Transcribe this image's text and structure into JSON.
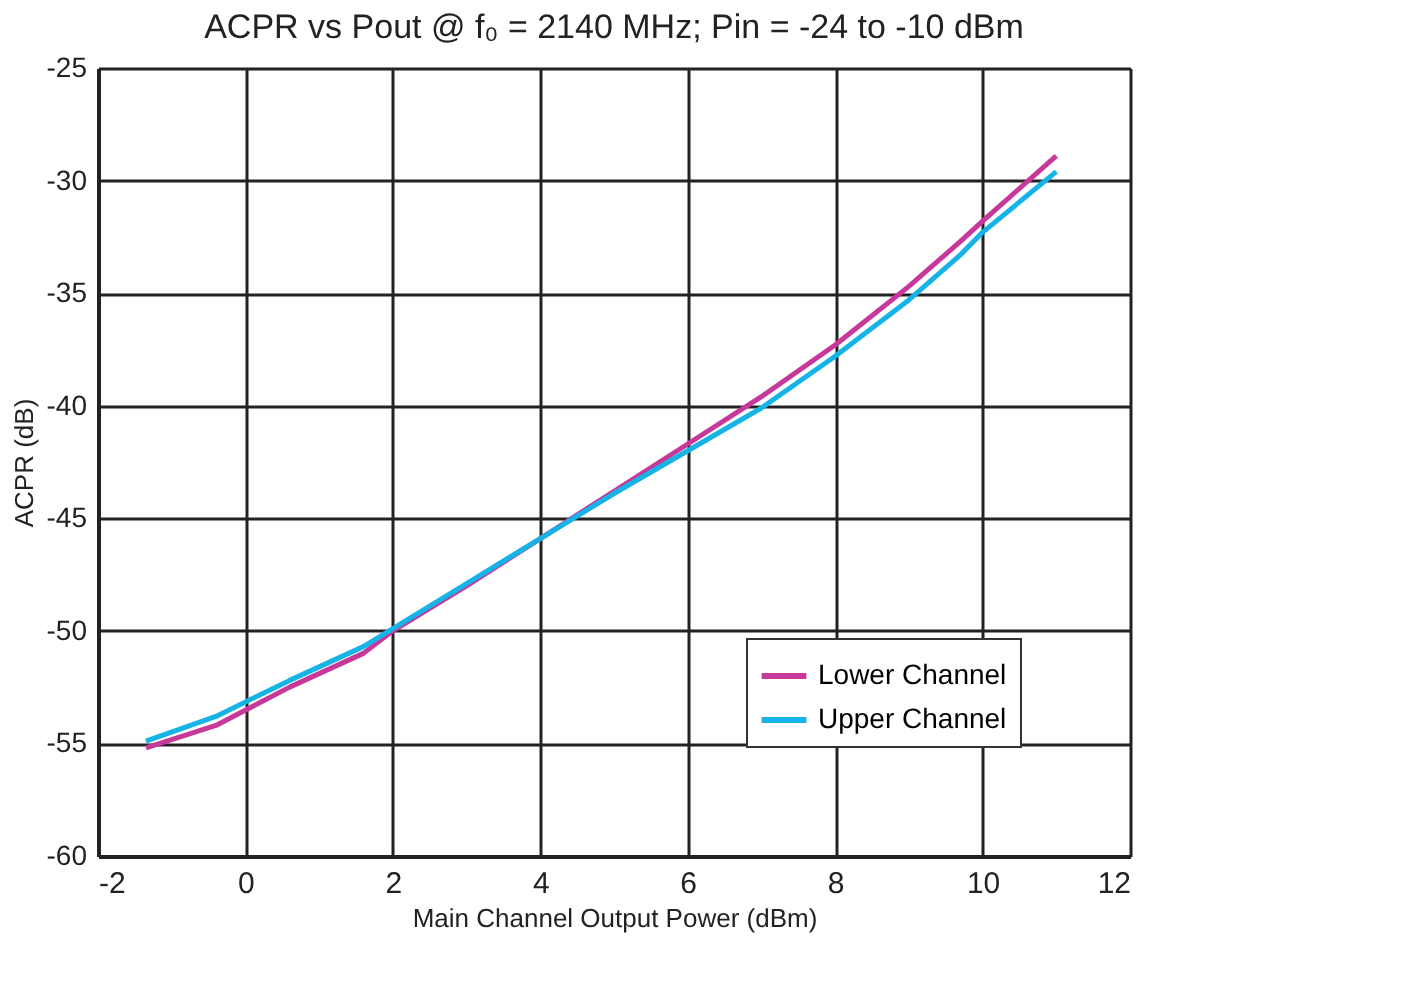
{
  "chart_data": {
    "type": "line",
    "title": "ACPR vs Pout @ f₀ = 2140 MHz; Pin = -24 to -10 dBm",
    "xlabel": "Main Channel Output Power (dBm)",
    "ylabel": "ACPR (dB)",
    "xlim": [
      -2,
      12
    ],
    "xticks": [
      -2,
      0,
      2,
      4,
      6,
      8,
      10,
      12
    ],
    "ylim": [
      -60,
      -25
    ],
    "yticks": [
      -60,
      -55,
      -50,
      -45,
      -40,
      -35,
      -30,
      -25
    ],
    "grid": true,
    "legend": "bottom right",
    "marker": "none",
    "line_style": "solid",
    "series": [
      {
        "name": "Lower Channel",
        "color": "#c6399a",
        "x": [
          -1.35,
          -0.4,
          0.6,
          1.6,
          2.0,
          3.0,
          4.0,
          5.0,
          6.0,
          7.0,
          8.0,
          9.0,
          9.7,
          10.0,
          11.0
        ],
        "values": [
          -55.2,
          -54.2,
          -52.5,
          -51.0,
          -50.0,
          -48.0,
          -45.9,
          -43.8,
          -41.7,
          -39.6,
          -37.3,
          -34.7,
          -32.7,
          -31.8,
          -28.9
        ]
      },
      {
        "name": "Upper Channel",
        "color": "#16b3e6",
        "x": [
          -1.35,
          -0.4,
          0.6,
          1.6,
          2.0,
          3.0,
          4.0,
          5.0,
          6.0,
          7.0,
          8.0,
          9.0,
          9.7,
          10.0,
          11.0
        ],
        "values": [
          -54.9,
          -53.8,
          -52.2,
          -50.7,
          -49.9,
          -47.9,
          -45.9,
          -43.9,
          -42.0,
          -40.1,
          -37.8,
          -35.3,
          -33.3,
          -32.3,
          -29.6
        ]
      }
    ]
  }
}
